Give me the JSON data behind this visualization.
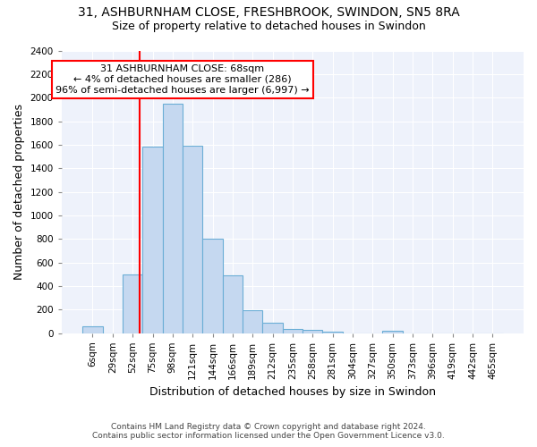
{
  "title": "31, ASHBURNHAM CLOSE, FRESHBROOK, SWINDON, SN5 8RA",
  "subtitle": "Size of property relative to detached houses in Swindon",
  "xlabel": "Distribution of detached houses by size in Swindon",
  "ylabel": "Number of detached properties",
  "footnote1": "Contains HM Land Registry data © Crown copyright and database right 2024.",
  "footnote2": "Contains public sector information licensed under the Open Government Licence v3.0.",
  "categories": [
    "6sqm",
    "29sqm",
    "52sqm",
    "75sqm",
    "98sqm",
    "121sqm",
    "144sqm",
    "166sqm",
    "189sqm",
    "212sqm",
    "235sqm",
    "258sqm",
    "281sqm",
    "304sqm",
    "327sqm",
    "350sqm",
    "373sqm",
    "396sqm",
    "419sqm",
    "442sqm",
    "465sqm"
  ],
  "bar_values": [
    55,
    0,
    500,
    1580,
    1950,
    1590,
    800,
    490,
    190,
    90,
    35,
    30,
    15,
    0,
    0,
    20,
    0,
    0,
    0,
    0,
    0
  ],
  "bar_color": "#c5d8f0",
  "bar_edge_color": "#6baed6",
  "vline_color": "red",
  "annotation_text": "31 ASHBURNHAM CLOSE: 68sqm\n← 4% of detached houses are smaller (286)\n96% of semi-detached houses are larger (6,997) →",
  "annotation_box_color": "white",
  "annotation_box_edge_color": "red",
  "ylim": [
    0,
    2400
  ],
  "yticks": [
    0,
    200,
    400,
    600,
    800,
    1000,
    1200,
    1400,
    1600,
    1800,
    2000,
    2200,
    2400
  ],
  "bg_color": "#ffffff",
  "plot_bg_color": "#eef2fb",
  "grid_color": "white",
  "title_fontsize": 10,
  "subtitle_fontsize": 9,
  "axis_label_fontsize": 9,
  "tick_fontsize": 7.5,
  "footnote_fontsize": 6.5,
  "annotation_fontsize": 8
}
